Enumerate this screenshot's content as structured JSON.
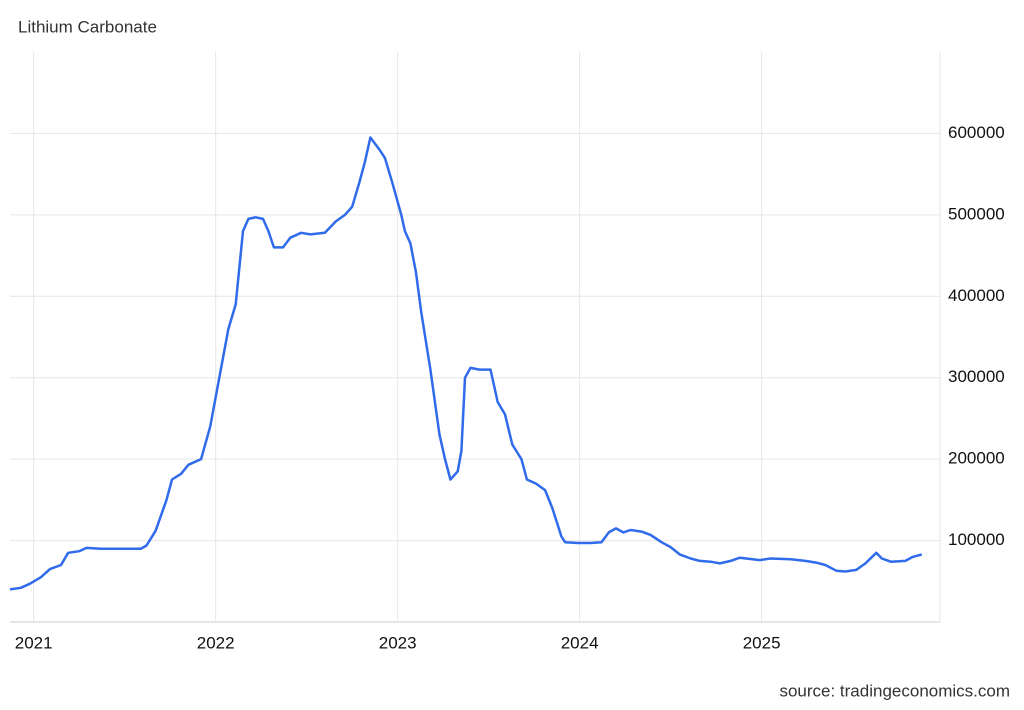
{
  "chart_data": {
    "type": "line",
    "title": "Lithium Carbonate",
    "source": "source: tradingeconomics.com",
    "x": [
      2020.87,
      2020.93,
      2020.98,
      2021.04,
      2021.09,
      2021.15,
      2021.19,
      2021.25,
      2021.29,
      2021.37,
      2021.59,
      2021.62,
      2021.67,
      2021.73,
      2021.76,
      2021.81,
      2021.85,
      2021.92,
      2021.97,
      2022.02,
      2022.07,
      2022.11,
      2022.15,
      2022.18,
      2022.22,
      2022.26,
      2022.29,
      2022.32,
      2022.37,
      2022.41,
      2022.47,
      2022.52,
      2022.6,
      2022.66,
      2022.71,
      2022.75,
      2022.79,
      2022.82,
      2022.85,
      2022.9,
      2022.93,
      2022.97,
      2023.02,
      2023.04,
      2023.07,
      2023.1,
      2023.13,
      2023.18,
      2023.23,
      2023.26,
      2023.29,
      2023.33,
      2023.35,
      2023.37,
      2023.4,
      2023.45,
      2023.51,
      2023.55,
      2023.59,
      2023.63,
      2023.68,
      2023.71,
      2023.76,
      2023.81,
      2023.85,
      2023.9,
      2023.92,
      2023.99,
      2024.06,
      2024.12,
      2024.16,
      2024.2,
      2024.24,
      2024.28,
      2024.34,
      2024.39,
      2024.45,
      2024.5,
      2024.55,
      2024.61,
      2024.66,
      2024.72,
      2024.77,
      2024.83,
      2024.88,
      2024.99,
      2025.05,
      2025.16,
      2025.24,
      2025.3,
      2025.35,
      2025.41,
      2025.46,
      2025.52,
      2025.57,
      2025.63,
      2025.66,
      2025.71,
      2025.79,
      2025.83,
      2025.88
    ],
    "series": [
      {
        "name": "Lithium Carbonate",
        "color": "#2f6bea",
        "values": [
          40000,
          42000,
          47000,
          55000,
          65000,
          70000,
          85000,
          87000,
          91000,
          90000,
          90000,
          94000,
          112000,
          150000,
          175000,
          182000,
          193000,
          200000,
          240000,
          300000,
          360000,
          390000,
          480000,
          495000,
          497000,
          495000,
          480000,
          460000,
          460000,
          472000,
          478000,
          476000,
          478000,
          492000,
          500000,
          510000,
          540000,
          565000,
          595000,
          580000,
          570000,
          540000,
          500000,
          480000,
          465000,
          430000,
          380000,
          310000,
          230000,
          200000,
          175000,
          185000,
          210000,
          300000,
          312000,
          310000,
          310000,
          270000,
          255000,
          218000,
          200000,
          175000,
          170000,
          162000,
          140000,
          105000,
          98000,
          97000,
          97000,
          98000,
          110000,
          115000,
          110000,
          113000,
          111000,
          107000,
          98000,
          92000,
          83000,
          78000,
          75000,
          74000,
          72000,
          75000,
          79000,
          76000,
          78000,
          77000,
          75000,
          73000,
          70000,
          63000,
          62000,
          64000,
          72000,
          85000,
          78000,
          74000,
          75000,
          80000,
          83000
        ]
      }
    ],
    "xlim": [
      2020.87,
      2025.98
    ],
    "xticks": [
      2021,
      2022,
      2023,
      2024,
      2025
    ],
    "ylim": [
      0,
      700000
    ],
    "yticks": [
      100000,
      200000,
      300000,
      400000,
      500000,
      600000
    ],
    "grid": true
  }
}
